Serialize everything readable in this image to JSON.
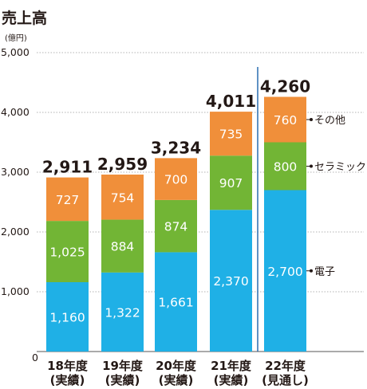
{
  "chart_data": {
    "type": "bar",
    "stacked": true,
    "title": "売上高",
    "unit": "(億円)",
    "categories": [
      [
        "18年度",
        "(実績)"
      ],
      [
        "19年度",
        "(実績)"
      ],
      [
        "20年度",
        "(実績)"
      ],
      [
        "21年度",
        "(実績)"
      ],
      [
        "22年度",
        "(見通し)"
      ]
    ],
    "series": [
      {
        "name": "電子",
        "color": "#1fb0e6",
        "values": [
          1160,
          1322,
          1661,
          2370,
          2700
        ],
        "labels": [
          "1,160",
          "1,322",
          "1,661",
          "2,370",
          "2,700"
        ]
      },
      {
        "name": "セラミック",
        "color": "#72b535",
        "values": [
          1025,
          884,
          874,
          907,
          800
        ],
        "labels": [
          "1,025",
          "884",
          "874",
          "907",
          "800"
        ]
      },
      {
        "name": "その他",
        "color": "#f08f3a",
        "values": [
          727,
          754,
          700,
          735,
          760
        ],
        "labels": [
          "727",
          "754",
          "700",
          "735",
          "760"
        ]
      }
    ],
    "totals": [
      "2,911",
      "2,959",
      "3,234",
      "4,011",
      "4,260"
    ],
    "y_ticks": [
      "0",
      "1,000",
      "2,000",
      "3,000",
      "4,000",
      "5,000"
    ],
    "ylim": [
      0,
      5000
    ],
    "grid": true,
    "legend": "right-of-last-bar",
    "divider_before_last": true
  }
}
